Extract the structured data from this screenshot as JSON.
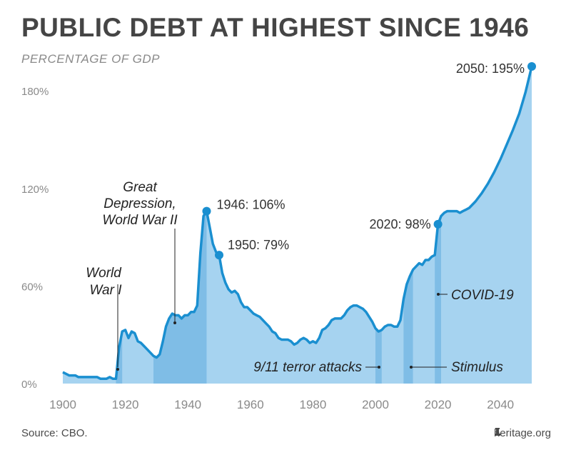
{
  "title": "PUBLIC DEBT AT HIGHEST SINCE 1946",
  "subtitle": "PERCENTAGE OF GDP",
  "source": "Source: CBO.",
  "brand": "heritage.org",
  "colors": {
    "line": "#1a8fd0",
    "fill": "#a6d3f0",
    "shade": "#7fbde6",
    "axis_text": "#8a8a8a",
    "label_text": "#333333"
  },
  "chart_data": {
    "type": "area",
    "title": "PUBLIC DEBT AT HIGHEST SINCE 1946",
    "ylabel": "PERCENTAGE OF GDP",
    "xlabel": "",
    "xlim": [
      1900,
      2050
    ],
    "ylim": [
      0,
      195
    ],
    "x_ticks": [
      1900,
      1920,
      1940,
      1960,
      1980,
      2000,
      2020,
      2040
    ],
    "y_ticks": [
      0,
      60,
      120,
      180
    ],
    "y_tick_labels": [
      "0%",
      "60%",
      "120%",
      "180%"
    ],
    "grid": false,
    "series": [
      {
        "points": [
          [
            1900,
            7
          ],
          [
            1901,
            6
          ],
          [
            1902,
            5
          ],
          [
            1903,
            5
          ],
          [
            1904,
            5
          ],
          [
            1905,
            4
          ],
          [
            1906,
            4
          ],
          [
            1907,
            4
          ],
          [
            1908,
            4
          ],
          [
            1909,
            4
          ],
          [
            1910,
            4
          ],
          [
            1911,
            4
          ],
          [
            1912,
            3
          ],
          [
            1913,
            3
          ],
          [
            1914,
            3
          ],
          [
            1915,
            4
          ],
          [
            1916,
            3
          ],
          [
            1917,
            3
          ],
          [
            1918,
            22
          ],
          [
            1919,
            32
          ],
          [
            1920,
            33
          ],
          [
            1921,
            28
          ],
          [
            1922,
            32
          ],
          [
            1923,
            31
          ],
          [
            1924,
            26
          ],
          [
            1925,
            25
          ],
          [
            1926,
            23
          ],
          [
            1927,
            21
          ],
          [
            1928,
            19
          ],
          [
            1929,
            17
          ],
          [
            1930,
            16
          ],
          [
            1931,
            18
          ],
          [
            1932,
            26
          ],
          [
            1933,
            35
          ],
          [
            1934,
            40
          ],
          [
            1935,
            43
          ],
          [
            1936,
            42
          ],
          [
            1937,
            42
          ],
          [
            1938,
            40
          ],
          [
            1939,
            42
          ],
          [
            1940,
            42
          ],
          [
            1941,
            44
          ],
          [
            1942,
            44
          ],
          [
            1943,
            48
          ],
          [
            1944,
            80
          ],
          [
            1945,
            103
          ],
          [
            1946,
            106
          ],
          [
            1947,
            96
          ],
          [
            1948,
            86
          ],
          [
            1949,
            81
          ],
          [
            1950,
            79
          ],
          [
            1951,
            68
          ],
          [
            1952,
            62
          ],
          [
            1953,
            58
          ],
          [
            1954,
            56
          ],
          [
            1955,
            57
          ],
          [
            1956,
            55
          ],
          [
            1957,
            50
          ],
          [
            1958,
            47
          ],
          [
            1959,
            47
          ],
          [
            1960,
            45
          ],
          [
            1961,
            43
          ],
          [
            1962,
            42
          ],
          [
            1963,
            41
          ],
          [
            1964,
            39
          ],
          [
            1965,
            37
          ],
          [
            1966,
            35
          ],
          [
            1967,
            32
          ],
          [
            1968,
            31
          ],
          [
            1969,
            28
          ],
          [
            1970,
            27
          ],
          [
            1971,
            27
          ],
          [
            1972,
            27
          ],
          [
            1973,
            26
          ],
          [
            1974,
            24
          ],
          [
            1975,
            25
          ],
          [
            1976,
            27
          ],
          [
            1977,
            28
          ],
          [
            1978,
            27
          ],
          [
            1979,
            25
          ],
          [
            1980,
            26
          ],
          [
            1981,
            25
          ],
          [
            1982,
            28
          ],
          [
            1983,
            33
          ],
          [
            1984,
            34
          ],
          [
            1985,
            36
          ],
          [
            1986,
            39
          ],
          [
            1987,
            40
          ],
          [
            1988,
            40
          ],
          [
            1989,
            40
          ],
          [
            1990,
            42
          ],
          [
            1991,
            45
          ],
          [
            1992,
            47
          ],
          [
            1993,
            48
          ],
          [
            1994,
            48
          ],
          [
            1995,
            47
          ],
          [
            1996,
            46
          ],
          [
            1997,
            44
          ],
          [
            1998,
            41
          ],
          [
            1999,
            38
          ],
          [
            2000,
            34
          ],
          [
            2001,
            32
          ],
          [
            2002,
            33
          ],
          [
            2003,
            35
          ],
          [
            2004,
            36
          ],
          [
            2005,
            36
          ],
          [
            2006,
            35
          ],
          [
            2007,
            35
          ],
          [
            2008,
            39
          ],
          [
            2009,
            52
          ],
          [
            2010,
            61
          ],
          [
            2011,
            66
          ],
          [
            2012,
            70
          ],
          [
            2013,
            72
          ],
          [
            2014,
            74
          ],
          [
            2015,
            73
          ],
          [
            2016,
            76
          ],
          [
            2017,
            76
          ],
          [
            2018,
            78
          ],
          [
            2019,
            79
          ],
          [
            2020,
            98
          ],
          [
            2021,
            103
          ],
          [
            2022,
            105
          ],
          [
            2023,
            106
          ],
          [
            2024,
            106
          ],
          [
            2025,
            106
          ],
          [
            2026,
            106
          ],
          [
            2027,
            105
          ],
          [
            2028,
            106
          ],
          [
            2029,
            107
          ],
          [
            2030,
            108
          ],
          [
            2032,
            112
          ],
          [
            2034,
            117
          ],
          [
            2036,
            123
          ],
          [
            2038,
            130
          ],
          [
            2040,
            138
          ],
          [
            2042,
            147
          ],
          [
            2044,
            156
          ],
          [
            2046,
            166
          ],
          [
            2048,
            179
          ],
          [
            2050,
            195
          ]
        ]
      }
    ],
    "shaded_periods": [
      {
        "name": "World War I",
        "start": 1917,
        "end": 1919
      },
      {
        "name": "Great Depression, World War II",
        "start": 1929,
        "end": 1946
      },
      {
        "name": "9/11 terror attacks",
        "start": 2000,
        "end": 2002
      },
      {
        "name": "Stimulus",
        "start": 2009,
        "end": 2012
      },
      {
        "name": "COVID-19",
        "start": 2019,
        "end": 2021
      }
    ],
    "highlights": [
      {
        "label": "1946: 106%",
        "x": 1946,
        "y": 106
      },
      {
        "label": "1950: 79%",
        "x": 1950,
        "y": 79
      },
      {
        "label": "2020: 98%",
        "x": 2020,
        "y": 98
      },
      {
        "label": "2050: 195%",
        "x": 2050,
        "y": 195
      }
    ],
    "annotations": {
      "ww1_line1": "World",
      "ww1_line2": "War I",
      "gd_line1": "Great",
      "gd_line2": "Depression,",
      "gd_line3": "World War II",
      "sept11": "9/11 terror attacks",
      "stimulus": "Stimulus",
      "covid": "COVID-19"
    }
  }
}
